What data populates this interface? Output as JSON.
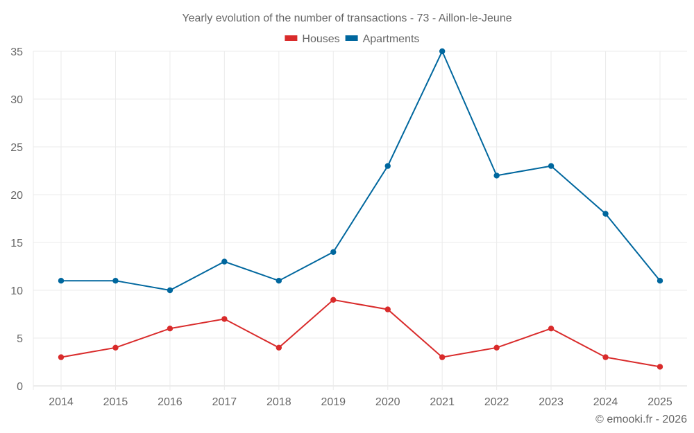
{
  "chart_data": {
    "type": "line",
    "title": "Yearly evolution of the number of transactions - 73 - Aillon-le-Jeune",
    "xlabel": "",
    "ylabel": "",
    "categories": [
      "2014",
      "2015",
      "2016",
      "2017",
      "2018",
      "2019",
      "2020",
      "2021",
      "2022",
      "2023",
      "2024",
      "2025"
    ],
    "series": [
      {
        "name": "Houses",
        "color": "#d92b2b",
        "values": [
          3,
          4,
          6,
          7,
          4,
          9,
          8,
          3,
          4,
          6,
          3,
          2
        ]
      },
      {
        "name": "Apartments",
        "color": "#00679e",
        "values": [
          11,
          11,
          10,
          13,
          11,
          14,
          23,
          35,
          22,
          23,
          18,
          11
        ]
      }
    ],
    "ylim": [
      0,
      35
    ],
    "yticks": [
      0,
      5,
      10,
      15,
      20,
      25,
      30,
      35
    ],
    "grid": true,
    "legend_position": "top"
  },
  "credit": "© emooki.fr - 2026"
}
